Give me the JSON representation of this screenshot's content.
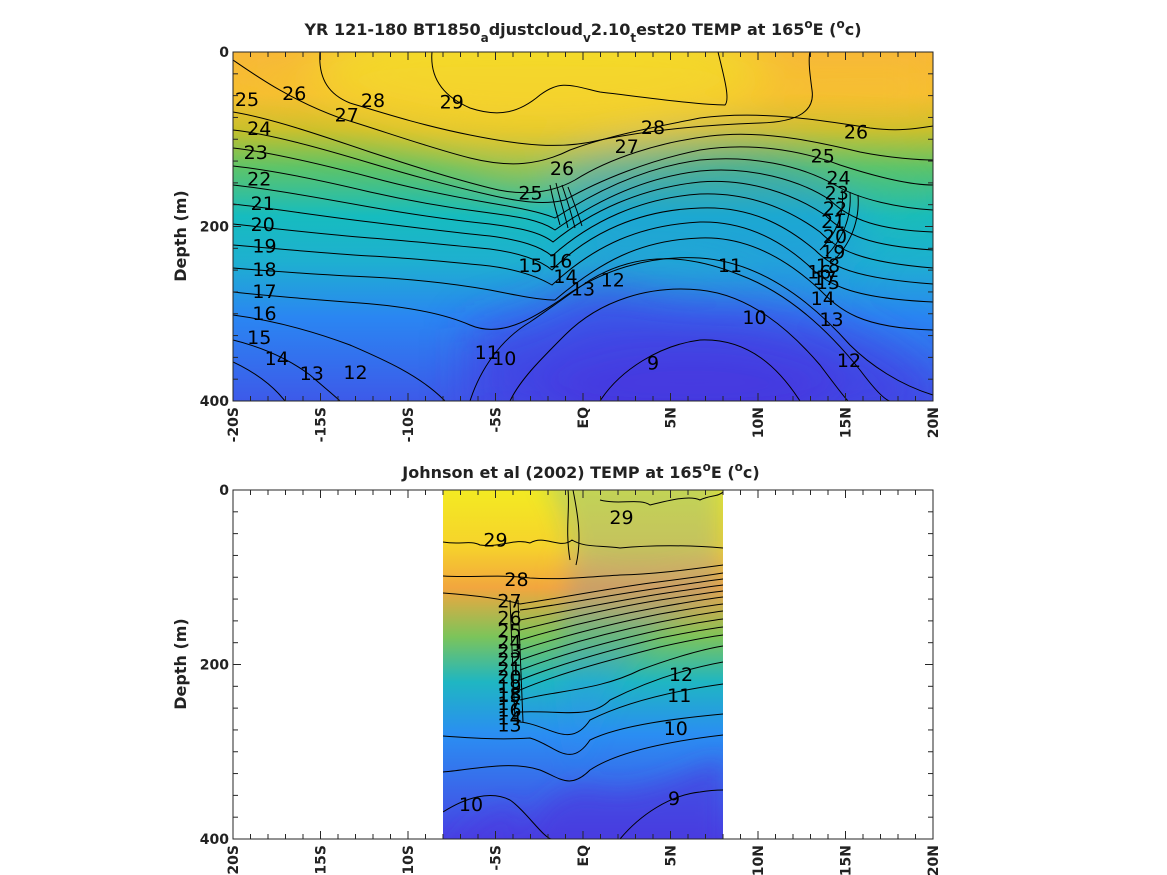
{
  "chart_data": [
    {
      "type": "heatmap",
      "title": "YR 121-180 BT1850_adjustcloud_v2.10_test20 TEMP at 165°E (°c)",
      "title_parts": {
        "p1": "YR 121-180 BT1850",
        "s1": "a",
        "p2": "djustcloud",
        "s2": "v",
        "p3": "2.10",
        "s3": "t",
        "p4": "est20 TEMP at 165",
        "sup1": "o",
        "p5": "E (",
        "sup2": "o",
        "p6": "c)"
      },
      "ylabel": "Depth (m)",
      "xlabel": "",
      "xlim": [
        -20,
        20
      ],
      "ylim": [
        0,
        400
      ],
      "y_reversed": true,
      "x_ticks": [
        -20,
        -15,
        -10,
        -5,
        0,
        5,
        10,
        15,
        20
      ],
      "x_tick_labels": [
        "-20S",
        "-15S",
        "-10S",
        "-5S",
        "EQ",
        "5N",
        "10N",
        "15N",
        "20N"
      ],
      "y_ticks": [
        0,
        200,
        400
      ],
      "y_tick_labels": [
        "0",
        "200",
        "400"
      ],
      "data_x_range": [
        -20,
        20
      ],
      "colormap": [
        "#4533e0",
        "#2a7ef5",
        "#14b8c8",
        "#55c56b",
        "#c4be2c",
        "#f9b63c",
        "#f6e524"
      ],
      "color_range_c": [
        8,
        30
      ],
      "contour_levels": [
        9,
        10,
        11,
        12,
        13,
        14,
        15,
        16,
        17,
        18,
        19,
        20,
        21,
        22,
        23,
        24,
        25,
        26,
        27,
        28,
        29
      ],
      "contour_labels": [
        {
          "text": "25",
          "x": -19.2,
          "y": 55
        },
        {
          "text": "26",
          "x": -16.5,
          "y": 48
        },
        {
          "text": "27",
          "x": -13.5,
          "y": 73
        },
        {
          "text": "28",
          "x": -12,
          "y": 56
        },
        {
          "text": "29",
          "x": -7.5,
          "y": 58
        },
        {
          "text": "24",
          "x": -18.5,
          "y": 88
        },
        {
          "text": "23",
          "x": -18.7,
          "y": 116
        },
        {
          "text": "22",
          "x": -18.5,
          "y": 146
        },
        {
          "text": "21",
          "x": -18.3,
          "y": 174
        },
        {
          "text": "20",
          "x": -18.3,
          "y": 198
        },
        {
          "text": "19",
          "x": -18.2,
          "y": 223
        },
        {
          "text": "18",
          "x": -18.2,
          "y": 250
        },
        {
          "text": "17",
          "x": -18.2,
          "y": 275
        },
        {
          "text": "16",
          "x": -18.2,
          "y": 300
        },
        {
          "text": "15",
          "x": -18.5,
          "y": 328
        },
        {
          "text": "14",
          "x": -17.5,
          "y": 352
        },
        {
          "text": "13",
          "x": -15.5,
          "y": 369
        },
        {
          "text": "12",
          "x": -13,
          "y": 368
        },
        {
          "text": "11",
          "x": -5.5,
          "y": 345
        },
        {
          "text": "10",
          "x": -4.5,
          "y": 352
        },
        {
          "text": "28",
          "x": 4,
          "y": 87
        },
        {
          "text": "27",
          "x": 2.5,
          "y": 109
        },
        {
          "text": "26",
          "x": -1.2,
          "y": 134
        },
        {
          "text": "25",
          "x": -3,
          "y": 162
        },
        {
          "text": "16",
          "x": -1.3,
          "y": 240
        },
        {
          "text": "15",
          "x": -3,
          "y": 245
        },
        {
          "text": "14",
          "x": -1,
          "y": 258
        },
        {
          "text": "13",
          "x": 0,
          "y": 272
        },
        {
          "text": "12",
          "x": 1.7,
          "y": 262
        },
        {
          "text": "11",
          "x": 8.4,
          "y": 245
        },
        {
          "text": "10",
          "x": 9.8,
          "y": 305
        },
        {
          "text": "9",
          "x": 4,
          "y": 357
        },
        {
          "text": "26",
          "x": 15.6,
          "y": 92
        },
        {
          "text": "25",
          "x": 13.7,
          "y": 120
        },
        {
          "text": "24",
          "x": 14.6,
          "y": 145
        },
        {
          "text": "23",
          "x": 14.5,
          "y": 162
        },
        {
          "text": "22",
          "x": 14.4,
          "y": 180
        },
        {
          "text": "21",
          "x": 14.3,
          "y": 195
        },
        {
          "text": "20",
          "x": 14.4,
          "y": 212
        },
        {
          "text": "19",
          "x": 14.3,
          "y": 230
        },
        {
          "text": "18",
          "x": 14,
          "y": 245
        },
        {
          "text": "17",
          "x": 13.8,
          "y": 260
        },
        {
          "text": "16",
          "x": 13.5,
          "y": 253
        },
        {
          "text": "15",
          "x": 14,
          "y": 265
        },
        {
          "text": "14",
          "x": 13.7,
          "y": 283
        },
        {
          "text": "13",
          "x": 14.2,
          "y": 307
        },
        {
          "text": "12",
          "x": 15.2,
          "y": 354
        }
      ]
    },
    {
      "type": "heatmap",
      "title": "Johnson et al (2002) TEMP at 165°E (°c)",
      "title_parts": {
        "p1": "Johnson et al (2002) TEMP at 165",
        "sup1": "o",
        "p2": "E (",
        "sup2": "o",
        "p3": "c)"
      },
      "ylabel": "Depth (m)",
      "xlabel": "",
      "xlim": [
        -20,
        20
      ],
      "ylim": [
        0,
        400
      ],
      "y_reversed": true,
      "x_ticks": [
        -20,
        -15,
        -10,
        -5,
        0,
        5,
        10,
        15,
        20
      ],
      "x_tick_labels": [
        "-20S",
        "-15S",
        "-10S",
        "-5S",
        "EQ",
        "5N",
        "10N",
        "15N",
        "20N"
      ],
      "y_ticks": [
        0,
        200,
        400
      ],
      "y_tick_labels": [
        "0",
        "200",
        "400"
      ],
      "data_x_range": [
        -8,
        8
      ],
      "colormap": [
        "#4533e0",
        "#2a7ef5",
        "#14b8c8",
        "#55c56b",
        "#c4be2c",
        "#f9b63c",
        "#f6e524"
      ],
      "color_range_c": [
        8,
        30
      ],
      "contour_levels": [
        9,
        10,
        11,
        12,
        13,
        14,
        15,
        16,
        17,
        18,
        19,
        20,
        21,
        22,
        23,
        24,
        25,
        26,
        27,
        28,
        29
      ],
      "contour_labels": [
        {
          "text": "29",
          "x": -5,
          "y": 58
        },
        {
          "text": "29",
          "x": 2.2,
          "y": 32
        },
        {
          "text": "28",
          "x": -3.8,
          "y": 103
        },
        {
          "text": "27",
          "x": -4.2,
          "y": 128
        },
        {
          "text": "26",
          "x": -4.2,
          "y": 147
        },
        {
          "text": "25",
          "x": -4.2,
          "y": 162
        },
        {
          "text": "24",
          "x": -4.2,
          "y": 175
        },
        {
          "text": "23",
          "x": -4.2,
          "y": 185
        },
        {
          "text": "22",
          "x": -4.2,
          "y": 195
        },
        {
          "text": "21",
          "x": -4.2,
          "y": 206
        },
        {
          "text": "20",
          "x": -4.2,
          "y": 215
        },
        {
          "text": "19",
          "x": -4.2,
          "y": 226
        },
        {
          "text": "18",
          "x": -4.2,
          "y": 235
        },
        {
          "text": "17",
          "x": -4.2,
          "y": 245
        },
        {
          "text": "16",
          "x": -4.2,
          "y": 253
        },
        {
          "text": "15",
          "x": -4.2,
          "y": 236
        },
        {
          "text": "14",
          "x": -4.2,
          "y": 262
        },
        {
          "text": "13",
          "x": -4.2,
          "y": 270
        },
        {
          "text": "12",
          "x": 5.6,
          "y": 212
        },
        {
          "text": "11",
          "x": 5.5,
          "y": 236
        },
        {
          "text": "10",
          "x": 5.3,
          "y": 274
        },
        {
          "text": "10",
          "x": -6.4,
          "y": 361
        },
        {
          "text": "9",
          "x": 5.2,
          "y": 354
        }
      ]
    }
  ]
}
